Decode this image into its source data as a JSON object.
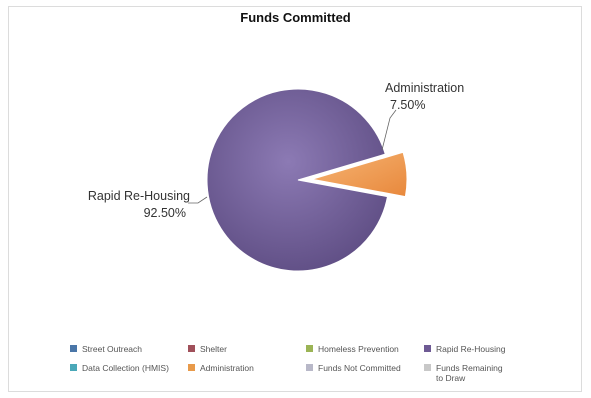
{
  "chart_data": {
    "type": "pie",
    "title": "Funds Committed",
    "slices": [
      {
        "label": "Rapid Re-Housing",
        "value": 92.5,
        "display": "92.50%",
        "color": "#6e5a94"
      },
      {
        "label": "Administration",
        "value": 7.5,
        "display": "7.50%",
        "color": "#f0a05a"
      }
    ],
    "legend": [
      {
        "label": "Street Outreach",
        "color": "#4a76a8"
      },
      {
        "label": "Shelter",
        "color": "#a0505a"
      },
      {
        "label": "Homeless Prevention",
        "color": "#9bb455"
      },
      {
        "label": "Rapid Re-Housing",
        "color": "#6e5a94"
      },
      {
        "label": "Data Collection (HMIS)",
        "color": "#4aa8b8"
      },
      {
        "label": "Administration",
        "color": "#e89a4a"
      },
      {
        "label": "Funds Not Committed",
        "color": "#b8b8c8"
      },
      {
        "label": "Funds Remaining to Draw",
        "color": "#c8c8c8"
      }
    ],
    "legend_position": "bottom"
  }
}
